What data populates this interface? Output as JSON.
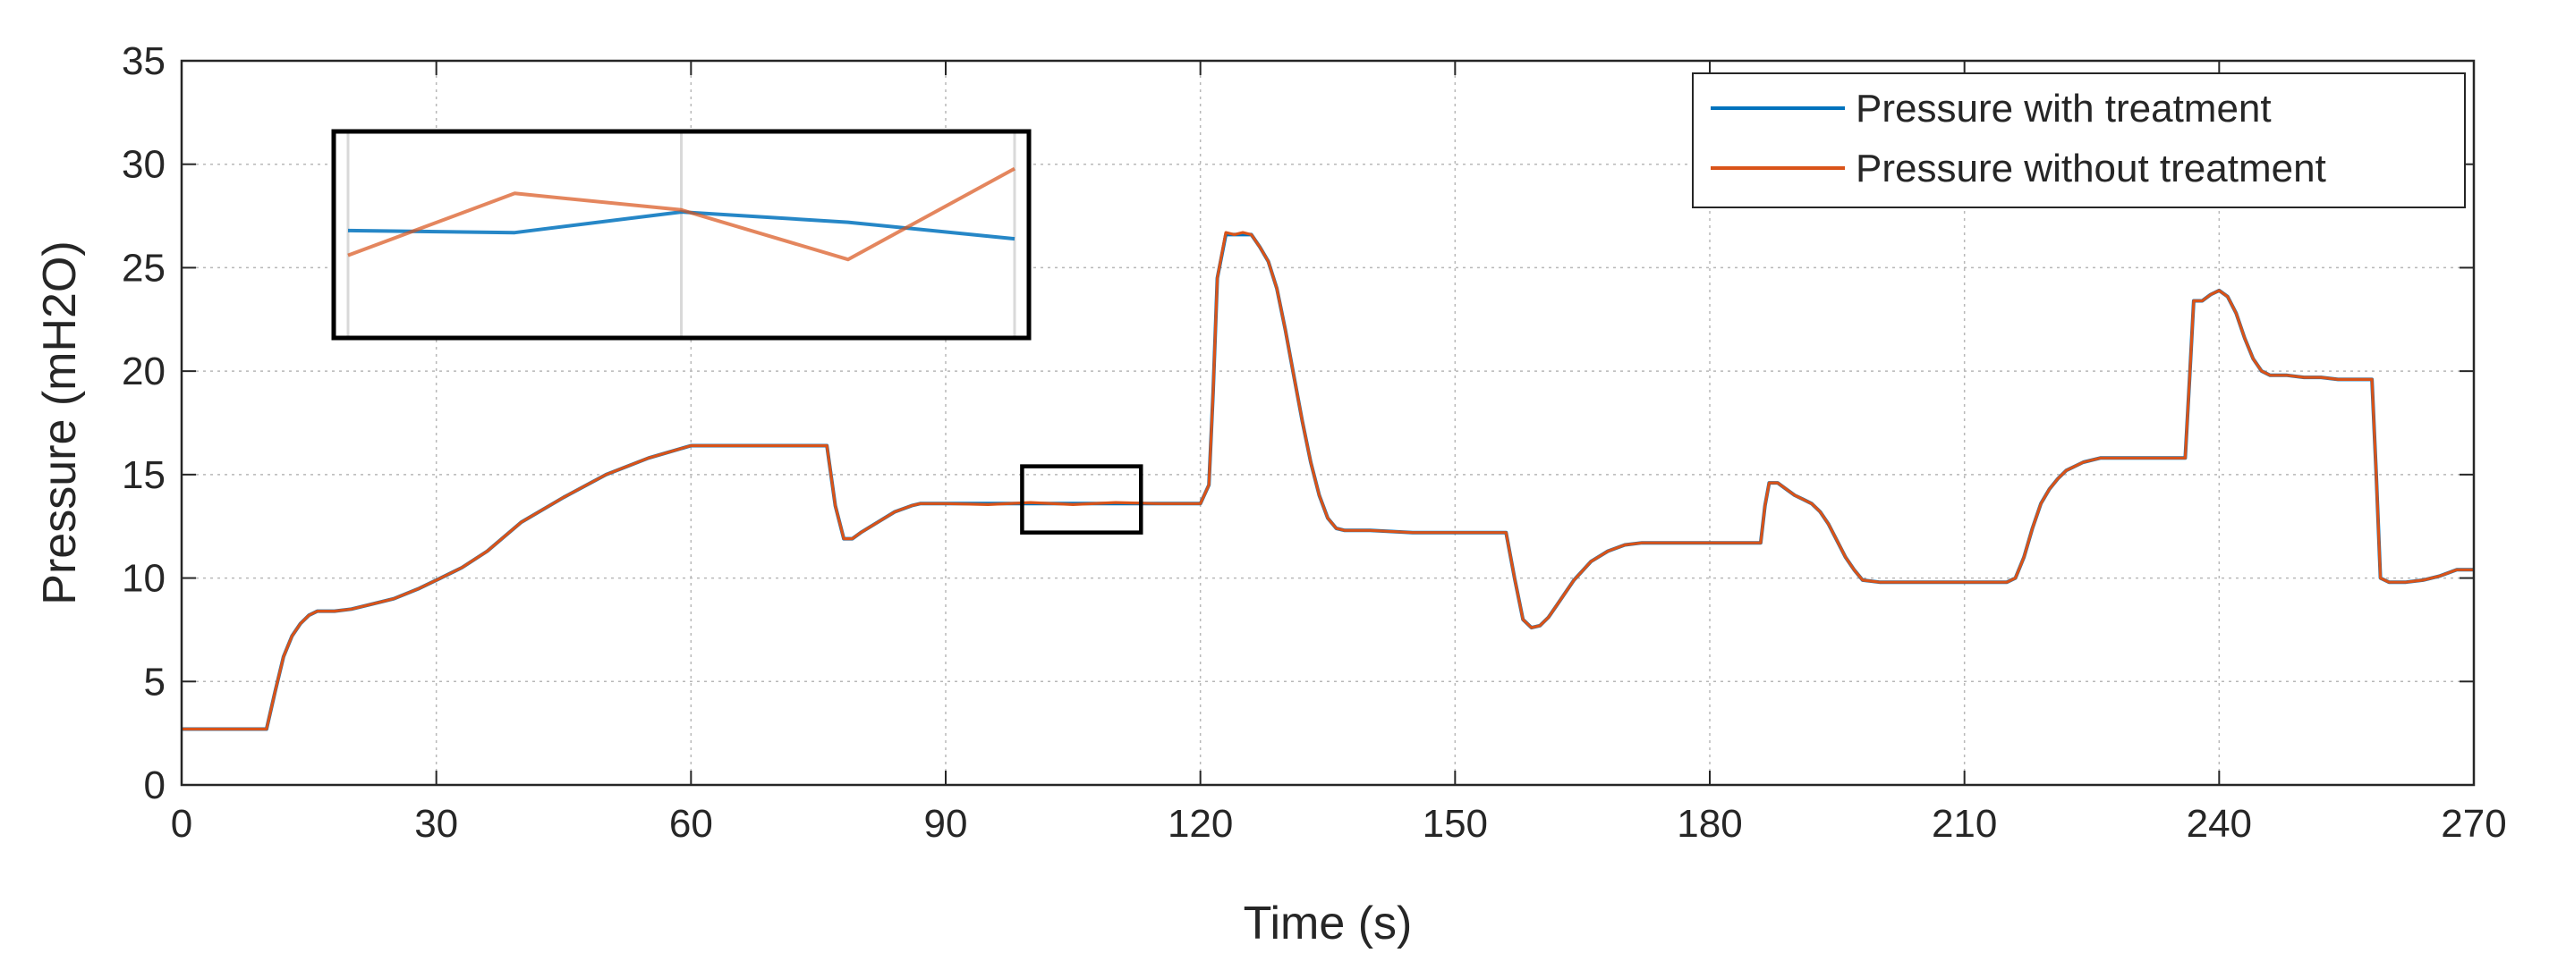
{
  "chart_data": {
    "type": "line",
    "title": "",
    "xlabel": "Time (s)",
    "ylabel": "Pressure (mH2O)",
    "xlim": [
      0,
      270
    ],
    "ylim": [
      0,
      35
    ],
    "xticks": [
      0,
      30,
      60,
      90,
      120,
      150,
      180,
      210,
      240,
      270
    ],
    "yticks": [
      0,
      5,
      10,
      15,
      20,
      25,
      30,
      35
    ],
    "grid": true,
    "legend_position": "top-right",
    "series": [
      {
        "name": "Pressure with treatment",
        "color": "#0072BD",
        "x": [
          0,
          5,
          10,
          11,
          12,
          13,
          14,
          15,
          16,
          18,
          20,
          22,
          25,
          28,
          30,
          33,
          36,
          40,
          45,
          50,
          55,
          60,
          65,
          70,
          75,
          76,
          77,
          78,
          79,
          80,
          82,
          84,
          86,
          87,
          90,
          95,
          100,
          105,
          110,
          115,
          120,
          121,
          121.5,
          122,
          123,
          124,
          125,
          126,
          127,
          128,
          129,
          130,
          131,
          132,
          133,
          134,
          135,
          136,
          137,
          138,
          140,
          145,
          150,
          156,
          157,
          158,
          159,
          160,
          161,
          162,
          163,
          164,
          166,
          168,
          170,
          172,
          174,
          176,
          180,
          184,
          186,
          186.5,
          187,
          188,
          189,
          190,
          191,
          192,
          193,
          194,
          195,
          196,
          197,
          198,
          200,
          205,
          210,
          215,
          216,
          217,
          218,
          219,
          220,
          221,
          222,
          224,
          226,
          228,
          230,
          232,
          235,
          236,
          236.5,
          237,
          238,
          239,
          240,
          241,
          242,
          243,
          244,
          245,
          246,
          248,
          250,
          252,
          254,
          256,
          257,
          258,
          258.5,
          259,
          260,
          262,
          264,
          266,
          268,
          270
        ],
        "y": [
          2.7,
          2.7,
          2.7,
          4.5,
          6.2,
          7.2,
          7.8,
          8.2,
          8.4,
          8.4,
          8.5,
          8.7,
          9.0,
          9.5,
          9.9,
          10.5,
          11.3,
          12.7,
          13.9,
          15.0,
          15.8,
          16.4,
          16.4,
          16.4,
          16.4,
          16.4,
          13.5,
          11.9,
          11.9,
          12.2,
          12.7,
          13.2,
          13.5,
          13.6,
          13.6,
          13.6,
          13.6,
          13.6,
          13.6,
          13.6,
          13.6,
          14.5,
          19.0,
          24.5,
          26.6,
          26.6,
          26.6,
          26.6,
          26.0,
          25.3,
          24.0,
          22.0,
          19.8,
          17.6,
          15.6,
          14.0,
          12.9,
          12.4,
          12.3,
          12.3,
          12.3,
          12.2,
          12.2,
          12.2,
          10.0,
          8.0,
          7.6,
          7.7,
          8.1,
          8.7,
          9.3,
          9.9,
          10.8,
          11.3,
          11.6,
          11.7,
          11.7,
          11.7,
          11.7,
          11.7,
          11.7,
          13.5,
          14.6,
          14.6,
          14.3,
          14.0,
          13.8,
          13.6,
          13.2,
          12.6,
          11.8,
          11.0,
          10.4,
          9.9,
          9.8,
          9.8,
          9.8,
          9.8,
          10.0,
          11.0,
          12.4,
          13.6,
          14.3,
          14.8,
          15.2,
          15.6,
          15.8,
          15.8,
          15.8,
          15.8,
          15.8,
          15.8,
          19.5,
          23.4,
          23.4,
          23.7,
          23.9,
          23.6,
          22.8,
          21.6,
          20.6,
          20.0,
          19.8,
          19.8,
          19.7,
          19.7,
          19.6,
          19.6,
          19.6,
          19.6,
          15.0,
          10.0,
          9.8,
          9.8,
          9.9,
          10.1,
          10.4,
          10.4
        ]
      },
      {
        "name": "Pressure without treatment",
        "color": "#D95319",
        "x": [
          0,
          5,
          10,
          11,
          12,
          13,
          14,
          15,
          16,
          18,
          20,
          22,
          25,
          28,
          30,
          33,
          36,
          40,
          45,
          50,
          55,
          60,
          65,
          70,
          75,
          76,
          77,
          78,
          79,
          80,
          82,
          84,
          86,
          87,
          90,
          95,
          100,
          105,
          110,
          115,
          120,
          121,
          121.5,
          122,
          123,
          124,
          125,
          126,
          127,
          128,
          129,
          130,
          131,
          132,
          133,
          134,
          135,
          136,
          137,
          138,
          140,
          145,
          150,
          156,
          157,
          158,
          159,
          160,
          161,
          162,
          163,
          164,
          166,
          168,
          170,
          172,
          174,
          176,
          180,
          184,
          186,
          186.5,
          187,
          188,
          189,
          190,
          191,
          192,
          193,
          194,
          195,
          196,
          197,
          198,
          200,
          205,
          210,
          215,
          216,
          217,
          218,
          219,
          220,
          221,
          222,
          224,
          226,
          228,
          230,
          232,
          235,
          236,
          236.5,
          237,
          238,
          239,
          240,
          241,
          242,
          243,
          244,
          245,
          246,
          248,
          250,
          252,
          254,
          256,
          257,
          258,
          258.5,
          259,
          260,
          262,
          264,
          266,
          268,
          270
        ],
        "y": [
          2.7,
          2.7,
          2.7,
          4.5,
          6.2,
          7.2,
          7.8,
          8.2,
          8.4,
          8.4,
          8.5,
          8.7,
          9.0,
          9.5,
          9.9,
          10.5,
          11.3,
          12.7,
          13.9,
          15.0,
          15.8,
          16.4,
          16.4,
          16.4,
          16.4,
          16.4,
          13.5,
          11.9,
          11.9,
          12.2,
          12.7,
          13.2,
          13.5,
          13.6,
          13.6,
          13.55,
          13.65,
          13.55,
          13.65,
          13.6,
          13.6,
          14.5,
          19.0,
          24.5,
          26.7,
          26.6,
          26.7,
          26.6,
          26.0,
          25.3,
          24.0,
          22.0,
          19.8,
          17.6,
          15.6,
          14.0,
          12.9,
          12.4,
          12.3,
          12.3,
          12.3,
          12.2,
          12.2,
          12.2,
          10.0,
          8.0,
          7.6,
          7.7,
          8.1,
          8.7,
          9.3,
          9.9,
          10.8,
          11.3,
          11.6,
          11.7,
          11.7,
          11.7,
          11.7,
          11.7,
          11.7,
          13.5,
          14.6,
          14.6,
          14.3,
          14.0,
          13.8,
          13.6,
          13.2,
          12.6,
          11.8,
          11.0,
          10.4,
          9.9,
          9.8,
          9.8,
          9.8,
          9.8,
          10.0,
          11.0,
          12.4,
          13.6,
          14.3,
          14.8,
          15.2,
          15.6,
          15.8,
          15.8,
          15.8,
          15.8,
          15.8,
          15.8,
          19.5,
          23.4,
          23.4,
          23.7,
          23.9,
          23.6,
          22.8,
          21.6,
          20.6,
          20.0,
          19.8,
          19.8,
          19.7,
          19.7,
          19.6,
          19.6,
          19.6,
          19.6,
          15.0,
          10.0,
          9.8,
          9.8,
          9.9,
          10.1,
          10.4,
          10.4
        ]
      }
    ],
    "zoom_region": {
      "xlim": [
        99,
        113
      ],
      "ylim": [
        12.2,
        15.4
      ],
      "inset_x": [
        0,
        1,
        2,
        3,
        4
      ],
      "inset_series": [
        {
          "name": "Pressure with treatment",
          "values": [
            0.52,
            0.51,
            0.61,
            0.56,
            0.48
          ]
        },
        {
          "name": "Pressure without treatment",
          "values": [
            0.4,
            0.7,
            0.62,
            0.38,
            0.82
          ]
        }
      ]
    }
  }
}
